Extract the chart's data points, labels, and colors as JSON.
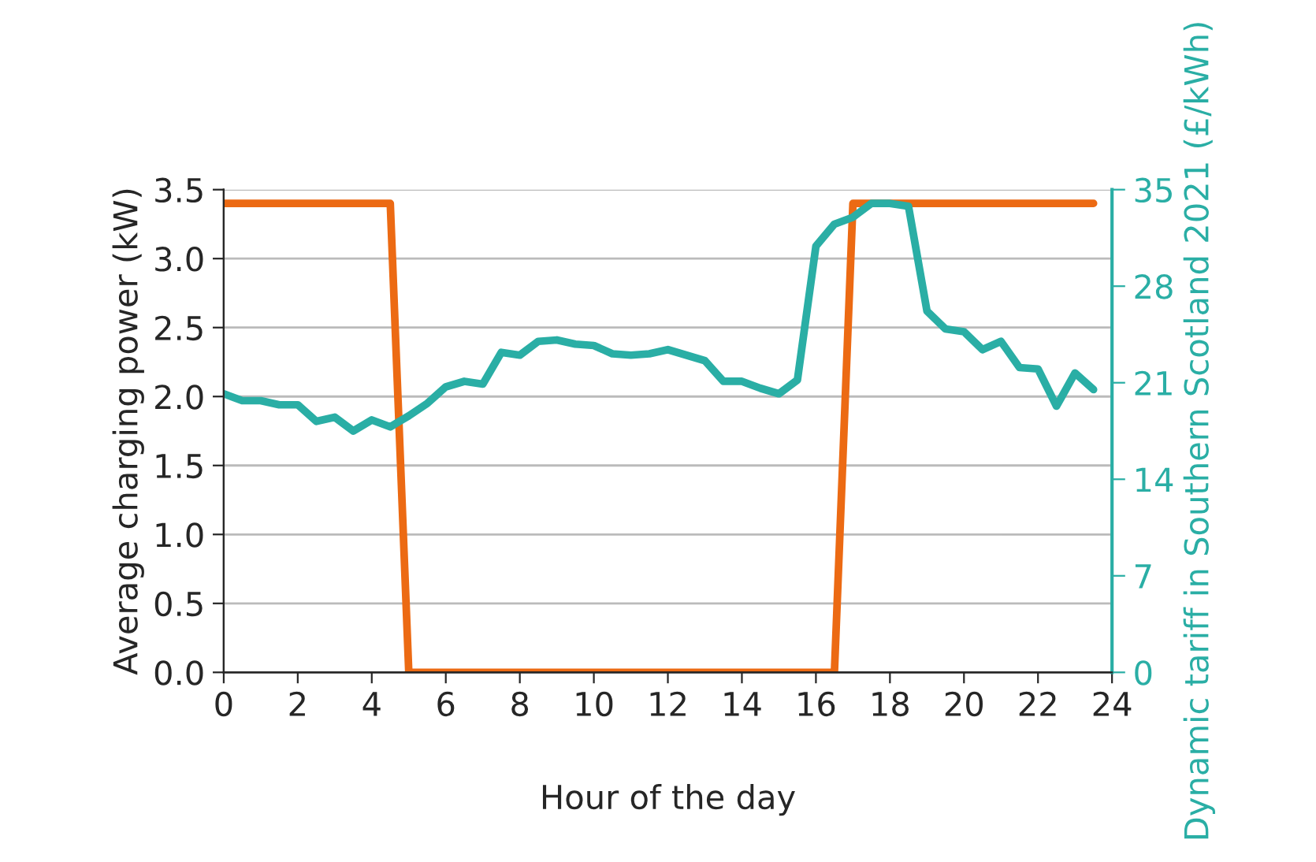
{
  "chart_data": {
    "type": "line",
    "xlabel": "Hour of the day",
    "ylabel": "Average charging power (kW)",
    "y2label": "Dynamic tariff in Southern Scotland 2021 (£/kWh)",
    "xlim": [
      0,
      24
    ],
    "xticks": [
      0,
      2,
      4,
      6,
      8,
      10,
      12,
      14,
      16,
      18,
      20,
      22,
      24
    ],
    "ylim": [
      0,
      3.5
    ],
    "yticks": [
      {
        "value": 0,
        "label": "0.0"
      },
      {
        "value": 0.5,
        "label": "0.5"
      },
      {
        "value": 1,
        "label": "1.0"
      },
      {
        "value": 1.5,
        "label": "1.5"
      },
      {
        "value": 2,
        "label": "2.0"
      },
      {
        "value": 2.5,
        "label": "2.5"
      },
      {
        "value": 3,
        "label": "3.0"
      },
      {
        "value": 3.5,
        "label": "3.5"
      }
    ],
    "y2lim": [
      0,
      35
    ],
    "y2ticks": [
      0,
      7,
      14,
      21,
      28,
      35
    ],
    "grid": "y",
    "legend": false,
    "x": [
      0,
      0.5,
      1,
      1.5,
      2,
      2.5,
      3,
      3.5,
      4,
      4.5,
      5,
      5.5,
      6,
      6.5,
      7,
      7.5,
      8,
      8.5,
      9,
      9.5,
      10,
      10.5,
      11,
      11.5,
      12,
      12.5,
      13,
      13.5,
      14,
      14.5,
      15,
      15.5,
      16,
      16.5,
      17,
      17.5,
      18,
      18.5,
      19,
      19.5,
      20,
      20.5,
      21,
      21.5,
      22,
      22.5,
      23,
      23.5
    ],
    "series": [
      {
        "color": "#ec6a13",
        "values": [
          3.4,
          3.4,
          3.4,
          3.4,
          3.4,
          3.4,
          3.4,
          3.4,
          3.4,
          3.4,
          0,
          0,
          0,
          0,
          0,
          0,
          0,
          0,
          0,
          0,
          0,
          0,
          0,
          0,
          0,
          0,
          0,
          0,
          0,
          0,
          0,
          0,
          0,
          0,
          3.4,
          3.4,
          3.4,
          3.4,
          3.4,
          3.4,
          3.4,
          3.4,
          3.4,
          3.4,
          3.4,
          3.4,
          3.4,
          3.4
        ]
      },
      {
        "color": "#2aaea5",
        "axis": "y2",
        "values": [
          20.2,
          19.7,
          19.7,
          19.4,
          19.4,
          18.2,
          18.5,
          17.5,
          18.3,
          17.8,
          18.6,
          19.5,
          20.7,
          21.1,
          20.9,
          23.2,
          23.0,
          24.0,
          24.1,
          23.8,
          23.7,
          23.1,
          23.0,
          23.1,
          23.4,
          23.0,
          22.6,
          21.1,
          21.1,
          20.6,
          20.2,
          21.2,
          30.9,
          32.5,
          33.0,
          34.0,
          34.0,
          33.8,
          26.2,
          24.9,
          24.7,
          23.4,
          24.0,
          22.1,
          22.0,
          19.3,
          21.7,
          20.5
        ]
      }
    ]
  }
}
